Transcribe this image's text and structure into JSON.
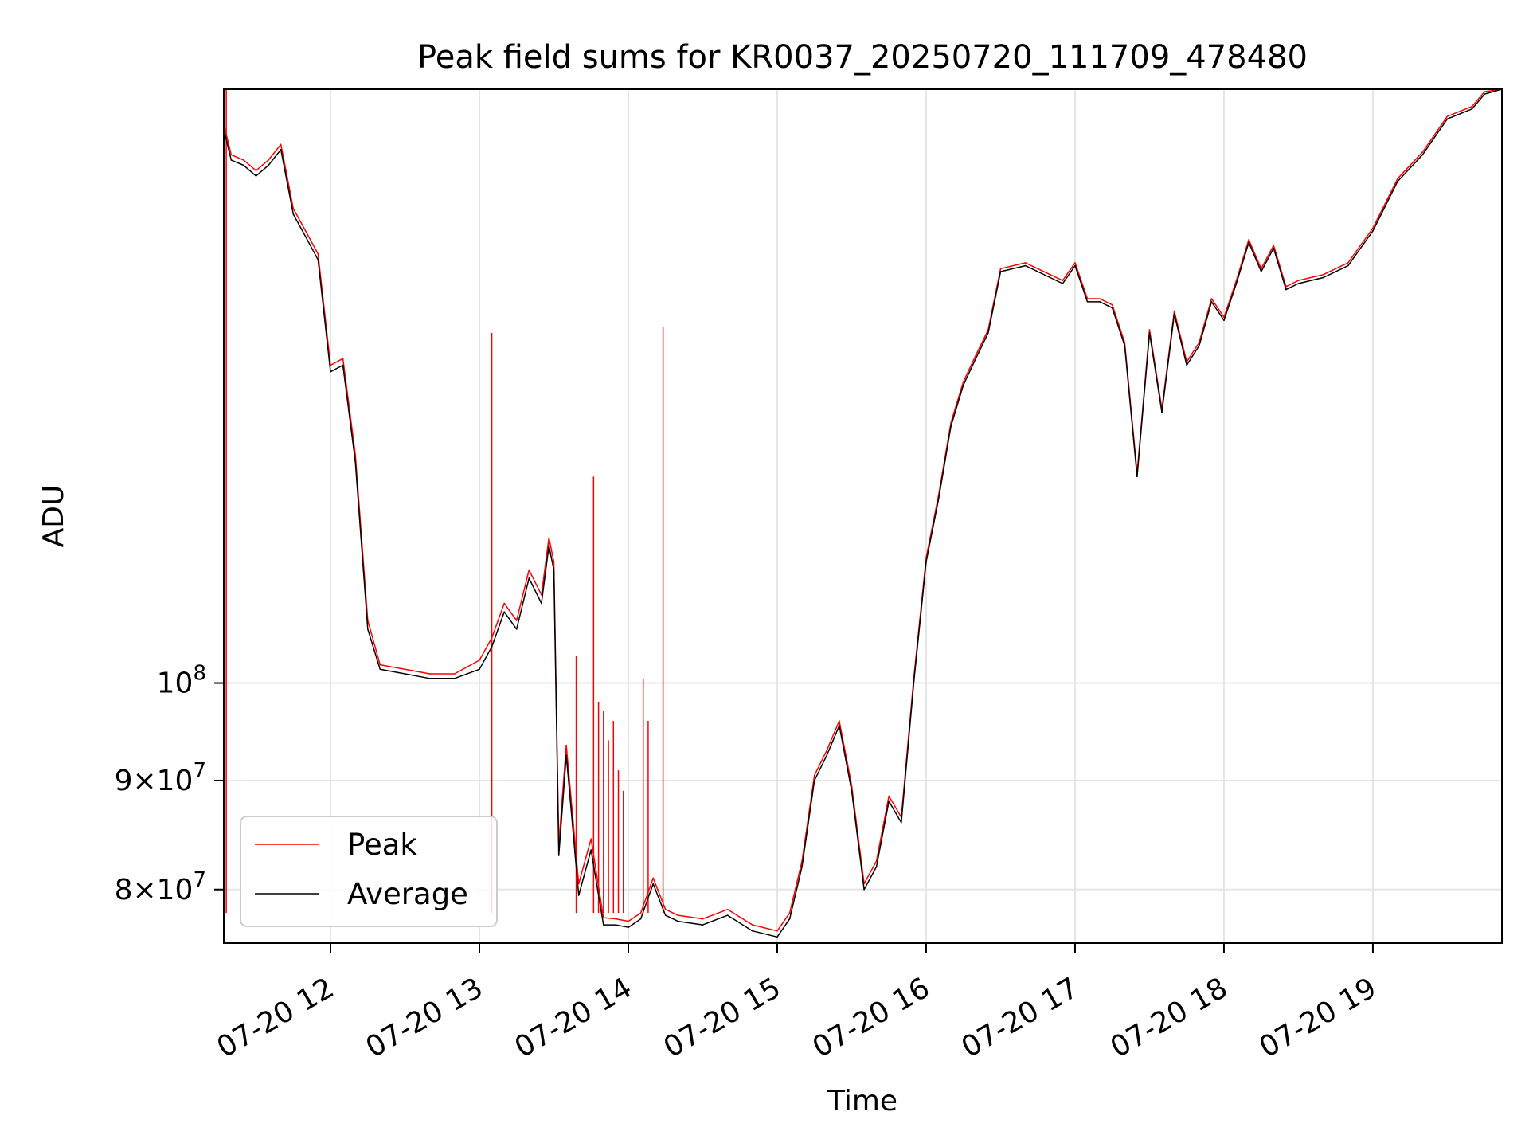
{
  "chart_data": {
    "type": "line",
    "title": "Peak field sums for KR0037_20250720_111709_478480",
    "xlabel": "Time",
    "ylabel": "ADU",
    "yscale": "log",
    "ylim": [
      75500000,
      190000000
    ],
    "xlim": [
      "2025-07-20 11:17",
      "2025-07-20 19:52"
    ],
    "grid": true,
    "legend_position": "lower-left",
    "x_ticks": [
      {
        "time": "2025-07-20 12:00",
        "label": "07-20 12"
      },
      {
        "time": "2025-07-20 13:00",
        "label": "07-20 13"
      },
      {
        "time": "2025-07-20 14:00",
        "label": "07-20 14"
      },
      {
        "time": "2025-07-20 15:00",
        "label": "07-20 15"
      },
      {
        "time": "2025-07-20 16:00",
        "label": "07-20 16"
      },
      {
        "time": "2025-07-20 17:00",
        "label": "07-20 17"
      },
      {
        "time": "2025-07-20 18:00",
        "label": "07-20 18"
      },
      {
        "time": "2025-07-20 19:00",
        "label": "07-20 19"
      }
    ],
    "y_ticks": [
      {
        "value": 80000000,
        "mantissa": "8",
        "exponent": "7"
      },
      {
        "value": 90000000,
        "mantissa": "9",
        "exponent": "7"
      },
      {
        "value": 100000000,
        "mantissa": "",
        "exponent": "8"
      }
    ],
    "series": [
      {
        "name": "Average",
        "color": "#000000",
        "x": [
          "2025-07-20 11:17",
          "2025-07-20 11:20",
          "2025-07-20 11:25",
          "2025-07-20 11:30",
          "2025-07-20 11:35",
          "2025-07-20 11:40",
          "2025-07-20 11:45",
          "2025-07-20 11:50",
          "2025-07-20 11:55",
          "2025-07-20 12:00",
          "2025-07-20 12:05",
          "2025-07-20 12:10",
          "2025-07-20 12:15",
          "2025-07-20 12:20",
          "2025-07-20 12:30",
          "2025-07-20 12:40",
          "2025-07-20 12:50",
          "2025-07-20 13:00",
          "2025-07-20 13:05",
          "2025-07-20 13:10",
          "2025-07-20 13:15",
          "2025-07-20 13:20",
          "2025-07-20 13:25",
          "2025-07-20 13:28",
          "2025-07-20 13:30",
          "2025-07-20 13:32",
          "2025-07-20 13:35",
          "2025-07-20 13:40",
          "2025-07-20 13:45",
          "2025-07-20 13:50",
          "2025-07-20 13:55",
          "2025-07-20 14:00",
          "2025-07-20 14:05",
          "2025-07-20 14:10",
          "2025-07-20 14:15",
          "2025-07-20 14:20",
          "2025-07-20 14:30",
          "2025-07-20 14:40",
          "2025-07-20 14:50",
          "2025-07-20 15:00",
          "2025-07-20 15:05",
          "2025-07-20 15:10",
          "2025-07-20 15:15",
          "2025-07-20 15:20",
          "2025-07-20 15:25",
          "2025-07-20 15:30",
          "2025-07-20 15:35",
          "2025-07-20 15:40",
          "2025-07-20 15:45",
          "2025-07-20 15:50",
          "2025-07-20 15:55",
          "2025-07-20 16:00",
          "2025-07-20 16:05",
          "2025-07-20 16:10",
          "2025-07-20 16:15",
          "2025-07-20 16:20",
          "2025-07-20 16:25",
          "2025-07-20 16:30",
          "2025-07-20 16:40",
          "2025-07-20 16:50",
          "2025-07-20 16:55",
          "2025-07-20 17:00",
          "2025-07-20 17:05",
          "2025-07-20 17:10",
          "2025-07-20 17:15",
          "2025-07-20 17:20",
          "2025-07-20 17:25",
          "2025-07-20 17:30",
          "2025-07-20 17:35",
          "2025-07-20 17:40",
          "2025-07-20 17:45",
          "2025-07-20 17:50",
          "2025-07-20 17:55",
          "2025-07-20 18:00",
          "2025-07-20 18:05",
          "2025-07-20 18:10",
          "2025-07-20 18:15",
          "2025-07-20 18:20",
          "2025-07-20 18:25",
          "2025-07-20 18:30",
          "2025-07-20 18:40",
          "2025-07-20 18:50",
          "2025-07-20 19:00",
          "2025-07-20 19:10",
          "2025-07-20 19:20",
          "2025-07-20 19:30",
          "2025-07-20 19:40",
          "2025-07-20 19:45",
          "2025-07-20 19:52"
        ],
        "y": [
          182000000,
          176000000,
          175000000,
          173000000,
          175000000,
          178000000,
          166000000,
          162000000,
          158000000,
          140000000,
          141000000,
          127000000,
          106000000,
          101500000,
          101000000,
          100500000,
          100500000,
          101500000,
          104000000,
          108000000,
          106000000,
          112000000,
          109000000,
          116000000,
          113000000,
          83000000,
          92500000,
          79500000,
          83500000,
          77000000,
          77000000,
          76800000,
          77500000,
          80500000,
          77800000,
          77300000,
          77000000,
          77800000,
          76500000,
          76000000,
          77500000,
          82000000,
          90000000,
          92500000,
          95500000,
          89000000,
          80000000,
          82000000,
          88000000,
          86000000,
          100000000,
          114000000,
          122000000,
          132000000,
          138000000,
          142000000,
          146000000,
          156000000,
          157000000,
          155000000,
          154000000,
          157000000,
          151000000,
          151000000,
          150000000,
          144000000,
          125000000,
          146000000,
          134000000,
          149000000,
          141000000,
          144000000,
          151000000,
          148000000,
          154000000,
          161000000,
          156000000,
          160000000,
          153000000,
          154000000,
          155000000,
          157000000,
          163000000,
          172000000,
          177000000,
          184000000,
          186000000,
          189000000,
          190000000
        ]
      },
      {
        "name": "Peak",
        "color": "#ff0000",
        "x": [
          "2025-07-20 11:17",
          "2025-07-20 11:20",
          "2025-07-20 11:25",
          "2025-07-20 11:30",
          "2025-07-20 11:35",
          "2025-07-20 11:40",
          "2025-07-20 11:45",
          "2025-07-20 11:50",
          "2025-07-20 11:55",
          "2025-07-20 12:00",
          "2025-07-20 12:05",
          "2025-07-20 12:10",
          "2025-07-20 12:15",
          "2025-07-20 12:20",
          "2025-07-20 12:30",
          "2025-07-20 12:40",
          "2025-07-20 12:50",
          "2025-07-20 13:00",
          "2025-07-20 13:05",
          "2025-07-20 13:10",
          "2025-07-20 13:15",
          "2025-07-20 13:20",
          "2025-07-20 13:25",
          "2025-07-20 13:28",
          "2025-07-20 13:30",
          "2025-07-20 13:32",
          "2025-07-20 13:35",
          "2025-07-20 13:40",
          "2025-07-20 13:45",
          "2025-07-20 13:50",
          "2025-07-20 13:55",
          "2025-07-20 14:00",
          "2025-07-20 14:05",
          "2025-07-20 14:10",
          "2025-07-20 14:15",
          "2025-07-20 14:20",
          "2025-07-20 14:30",
          "2025-07-20 14:40",
          "2025-07-20 14:50",
          "2025-07-20 15:00",
          "2025-07-20 15:05",
          "2025-07-20 15:10",
          "2025-07-20 15:15",
          "2025-07-20 15:20",
          "2025-07-20 15:25",
          "2025-07-20 15:30",
          "2025-07-20 15:35",
          "2025-07-20 15:40",
          "2025-07-20 15:45",
          "2025-07-20 15:50",
          "2025-07-20 15:55",
          "2025-07-20 16:00",
          "2025-07-20 16:05",
          "2025-07-20 16:10",
          "2025-07-20 16:15",
          "2025-07-20 16:20",
          "2025-07-20 16:25",
          "2025-07-20 16:30",
          "2025-07-20 16:40",
          "2025-07-20 16:50",
          "2025-07-20 16:55",
          "2025-07-20 17:00",
          "2025-07-20 17:05",
          "2025-07-20 17:10",
          "2025-07-20 17:15",
          "2025-07-20 17:20",
          "2025-07-20 17:25",
          "2025-07-20 17:30",
          "2025-07-20 17:35",
          "2025-07-20 17:40",
          "2025-07-20 17:45",
          "2025-07-20 17:50",
          "2025-07-20 17:55",
          "2025-07-20 18:00",
          "2025-07-20 18:05",
          "2025-07-20 18:10",
          "2025-07-20 18:15",
          "2025-07-20 18:20",
          "2025-07-20 18:25",
          "2025-07-20 18:30",
          "2025-07-20 18:40",
          "2025-07-20 18:50",
          "2025-07-20 19:00",
          "2025-07-20 19:10",
          "2025-07-20 19:20",
          "2025-07-20 19:30",
          "2025-07-20 19:40",
          "2025-07-20 19:45",
          "2025-07-20 19:52"
        ],
        "y": [
          183000000,
          177000000,
          176000000,
          174000000,
          176000000,
          179000000,
          167000000,
          163000000,
          159000000,
          141000000,
          142000000,
          128000000,
          107000000,
          102000000,
          101500000,
          101000000,
          101000000,
          102500000,
          105000000,
          109000000,
          107000000,
          113000000,
          110000000,
          117000000,
          114000000,
          84000000,
          93500000,
          80500000,
          84500000,
          77600000,
          77500000,
          77300000,
          78000000,
          81000000,
          78300000,
          77800000,
          77500000,
          78300000,
          77000000,
          76500000,
          78000000,
          82500000,
          90500000,
          93000000,
          96000000,
          89500000,
          80500000,
          82500000,
          88500000,
          86500000,
          100500000,
          114500000,
          122500000,
          132500000,
          138500000,
          142500000,
          146500000,
          156500000,
          157500000,
          155500000,
          154500000,
          157500000,
          151500000,
          151500000,
          150500000,
          144500000,
          125500000,
          146500000,
          134500000,
          149500000,
          141500000,
          144500000,
          151500000,
          148500000,
          154500000,
          161500000,
          156500000,
          160500000,
          153500000,
          154500000,
          155500000,
          157500000,
          163500000,
          172500000,
          177500000,
          184500000,
          186500000,
          189500000,
          190000000
        ],
        "spikes": [
          {
            "x": "2025-07-20 11:18",
            "y": 190000000
          },
          {
            "x": "2025-07-20 13:05",
            "y": 146000000
          },
          {
            "x": "2025-07-20 13:39",
            "y": 103000000
          },
          {
            "x": "2025-07-20 13:46",
            "y": 125000000
          },
          {
            "x": "2025-07-20 13:48",
            "y": 98000000
          },
          {
            "x": "2025-07-20 13:50",
            "y": 97000000
          },
          {
            "x": "2025-07-20 13:52",
            "y": 94000000
          },
          {
            "x": "2025-07-20 13:54",
            "y": 96000000
          },
          {
            "x": "2025-07-20 13:56",
            "y": 91000000
          },
          {
            "x": "2025-07-20 13:58",
            "y": 89000000
          },
          {
            "x": "2025-07-20 14:06",
            "y": 100500000
          },
          {
            "x": "2025-07-20 14:08",
            "y": 96000000
          },
          {
            "x": "2025-07-20 14:14",
            "y": 147000000
          }
        ]
      }
    ]
  }
}
